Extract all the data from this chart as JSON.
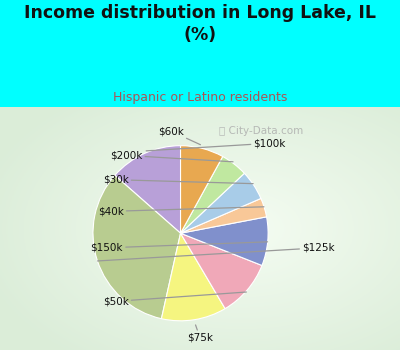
{
  "title": "Income distribution in Long Lake, IL\n(%)",
  "subtitle": "Hispanic or Latino residents",
  "title_color": "#111111",
  "subtitle_color": "#aa5555",
  "bg_color": "#00ffff",
  "chart_bg_left": "#c8e8d8",
  "chart_bg_right": "#e8f8f0",
  "watermark": "ⓘ City-Data.com",
  "labels": [
    "$100k",
    "$125k",
    "$75k",
    "$50k",
    "$150k",
    "$40k",
    "$30k",
    "$200k",
    "$60k"
  ],
  "values": [
    13.5,
    33.0,
    12.0,
    10.5,
    9.0,
    3.5,
    5.5,
    5.0,
    8.0
  ],
  "colors": [
    "#b8a0d8",
    "#b8cc90",
    "#f5f580",
    "#f0a8b8",
    "#8090cc",
    "#f8c898",
    "#a8cce8",
    "#c0e8a0",
    "#e8a850"
  ],
  "start_angle": 90,
  "figsize": [
    4.0,
    3.5
  ],
  "dpi": 100
}
